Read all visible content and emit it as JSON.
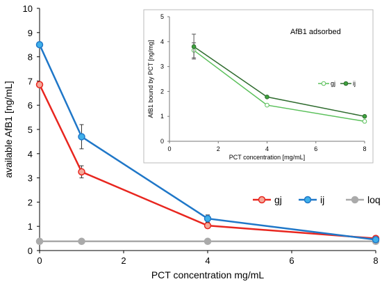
{
  "chart_data": [
    {
      "type": "line",
      "x": [
        0,
        1,
        4,
        8
      ],
      "series": [
        {
          "name": "gj",
          "values": [
            6.85,
            3.25,
            1.03,
            0.5
          ],
          "errors": [
            0,
            0.25,
            0.06,
            0
          ],
          "color": "#e8261f",
          "marker_fill": "#f4a99a"
        },
        {
          "name": "ij",
          "values": [
            8.5,
            4.7,
            1.32,
            0.45
          ],
          "errors": [
            0,
            0.5,
            0.15,
            0
          ],
          "color": "#1f77c8",
          "marker_fill": "#3fb0ea"
        },
        {
          "name": "loq",
          "values": [
            0.38,
            0.38,
            0.38,
            0.38
          ],
          "errors": [
            0,
            0,
            0,
            0
          ],
          "color": "#aaaaaa",
          "marker_fill": "#aaaaaa"
        }
      ],
      "xlabel": "PCT concentration mg/mL",
      "ylabel": "available AfB1 [ng/mL]",
      "xlim": [
        0,
        8
      ],
      "ylim": [
        0,
        10
      ],
      "xticks": [
        0,
        2,
        4,
        6,
        8
      ],
      "yticks": [
        0,
        1,
        2,
        3,
        4,
        5,
        6,
        7,
        8,
        9,
        10
      ],
      "grid": false,
      "legend_position": "right"
    },
    {
      "type": "line",
      "title": "AfB1 adsorbed",
      "x": [
        1,
        4,
        8
      ],
      "series": [
        {
          "name": "gj",
          "values": [
            3.65,
            1.45,
            0.8
          ],
          "errors": [
            0.3,
            0,
            0
          ],
          "color": "#5ac05a",
          "marker_fill": "#ffffff"
        },
        {
          "name": "ij",
          "values": [
            3.8,
            1.78,
            1.0
          ],
          "errors": [
            0.5,
            0,
            0
          ],
          "color": "#2e6b2e",
          "marker_fill": "#3fa33f"
        }
      ],
      "xlabel": "PCT concentration [mg/mL]",
      "ylabel": "AfB1 bound by PCT [ng/mg]",
      "xlim": [
        0,
        8
      ],
      "ylim": [
        0,
        5
      ],
      "xticks": [
        0,
        2,
        4,
        6,
        8
      ],
      "yticks": [
        0,
        1,
        2,
        3,
        4,
        5
      ],
      "grid": false,
      "legend_position": "right"
    }
  ]
}
